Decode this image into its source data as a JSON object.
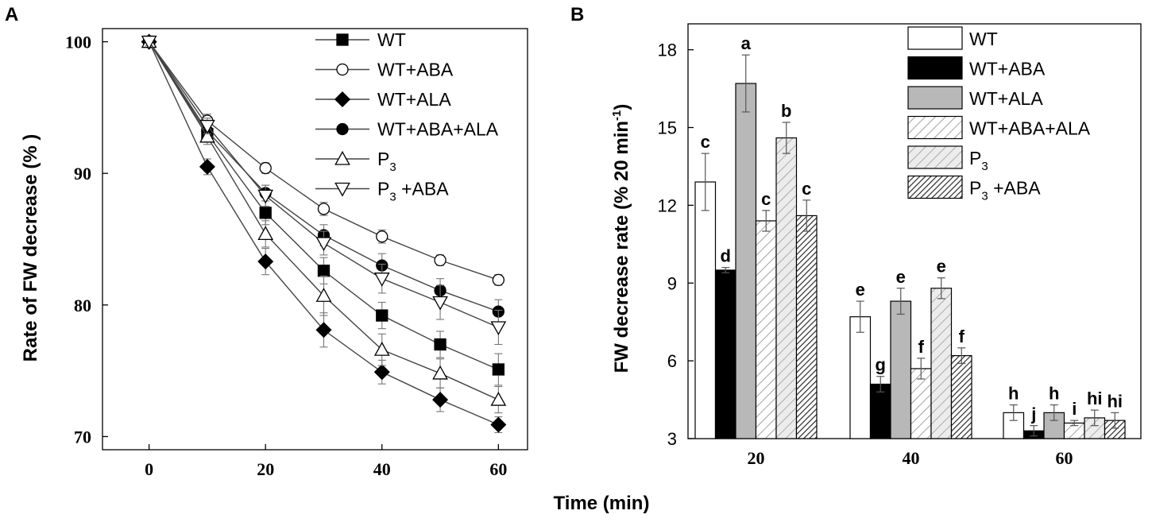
{
  "xlabel": "Time (min)",
  "legend_entries": [
    "WT",
    "WT+ABA",
    "WT+ALA",
    "WT+ABA+ALA",
    "P3",
    "P3 +ABA"
  ],
  "chart_data": [
    {
      "panel": "A",
      "type": "line",
      "title": "",
      "xlabel": "Time (min)",
      "ylabel": "Rate of FW decrease (% )",
      "xlim": [
        -8,
        65
      ],
      "ylim": [
        69,
        101
      ],
      "xticks": [
        "0",
        "20",
        "40",
        "60"
      ],
      "yticks": [
        "70",
        "80",
        "90",
        "100"
      ],
      "x": [
        0,
        10,
        20,
        30,
        40,
        50,
        60
      ],
      "legend_position": "top-right",
      "series": [
        {
          "name": "WT",
          "marker": "square-filled",
          "values": [
            100,
            93.0,
            87.0,
            82.6,
            79.2,
            77.0,
            75.1
          ],
          "errors": [
            0.3,
            0.6,
            0.9,
            1.0,
            1.0,
            1.0,
            1.2
          ]
        },
        {
          "name": "WT+ABA",
          "marker": "circle-open",
          "values": [
            100,
            94.0,
            90.4,
            87.3,
            85.2,
            83.4,
            81.9
          ],
          "errors": [
            0.3,
            0.5,
            0.4,
            0.5,
            0.5,
            0.4,
            0.4
          ]
        },
        {
          "name": "WT+ALA",
          "marker": "diamond-filled",
          "values": [
            100,
            90.5,
            83.3,
            78.1,
            74.9,
            72.8,
            70.9
          ],
          "errors": [
            0.3,
            0.6,
            1.0,
            1.3,
            0.9,
            0.9,
            0.6
          ]
        },
        {
          "name": "WT+ABA+ALA",
          "marker": "circle-filled",
          "values": [
            100,
            93.2,
            88.5,
            85.3,
            83.0,
            81.1,
            79.5
          ],
          "errors": [
            0.3,
            0.5,
            0.6,
            0.8,
            0.9,
            0.9,
            0.9
          ]
        },
        {
          "name": "P3",
          "marker": "triangle-up-open",
          "values": [
            100,
            92.8,
            85.4,
            80.7,
            76.6,
            74.8,
            72.8
          ],
          "errors": [
            0.3,
            0.6,
            1.0,
            1.5,
            1.2,
            1.1,
            1.0
          ]
        },
        {
          "name": "P3 +ABA",
          "marker": "triangle-down-open",
          "values": [
            100,
            93.6,
            88.3,
            84.7,
            82.0,
            80.2,
            78.3
          ],
          "errors": [
            0.3,
            0.6,
            0.8,
            0.9,
            1.1,
            1.3,
            1.3
          ]
        }
      ]
    },
    {
      "panel": "B",
      "type": "bar",
      "title": "",
      "xlabel": "Time (min)",
      "ylabel_prefix": "FW decrease rate (% 20 min",
      "ylabel_sup": "-1",
      "ylabel_suffix": ")",
      "ylim": [
        3,
        19
      ],
      "yticks": [
        "3",
        "6",
        "9",
        "12",
        "15",
        "18"
      ],
      "categories": [
        "20",
        "40",
        "60"
      ],
      "legend_position": "top-right",
      "series": [
        {
          "name": "WT",
          "fill": "white",
          "values": [
            12.9,
            7.7,
            4.0
          ],
          "errors": [
            1.1,
            0.6,
            0.3
          ],
          "letters": [
            "c",
            "e",
            "h"
          ]
        },
        {
          "name": "WT+ABA",
          "fill": "black",
          "values": [
            9.5,
            5.1,
            3.3
          ],
          "errors": [
            0.1,
            0.3,
            0.2
          ],
          "letters": [
            "d",
            "g",
            "j"
          ]
        },
        {
          "name": "WT+ALA",
          "fill": "gray",
          "values": [
            16.7,
            8.3,
            4.0
          ],
          "errors": [
            1.1,
            0.5,
            0.3
          ],
          "letters": [
            "a",
            "e",
            "h"
          ]
        },
        {
          "name": "WT+ABA+ALA",
          "fill": "hatch-light",
          "values": [
            11.4,
            5.7,
            3.6
          ],
          "errors": [
            0.4,
            0.4,
            0.1
          ],
          "letters": [
            "c",
            "f",
            "i"
          ]
        },
        {
          "name": "P3",
          "fill": "hatch-light-gray",
          "values": [
            14.6,
            8.8,
            3.8
          ],
          "errors": [
            0.6,
            0.4,
            0.3
          ],
          "letters": [
            "b",
            "e",
            "hi"
          ]
        },
        {
          "name": "P3 +ABA",
          "fill": "hatch-dense",
          "values": [
            11.6,
            6.2,
            3.7
          ],
          "errors": [
            0.6,
            0.3,
            0.3
          ],
          "letters": [
            "c",
            "f",
            "hi"
          ]
        }
      ]
    }
  ],
  "colors": {
    "axis": "#000000",
    "line": "#444444",
    "gray_fill": "#b8b8b8",
    "error": "#777777"
  }
}
